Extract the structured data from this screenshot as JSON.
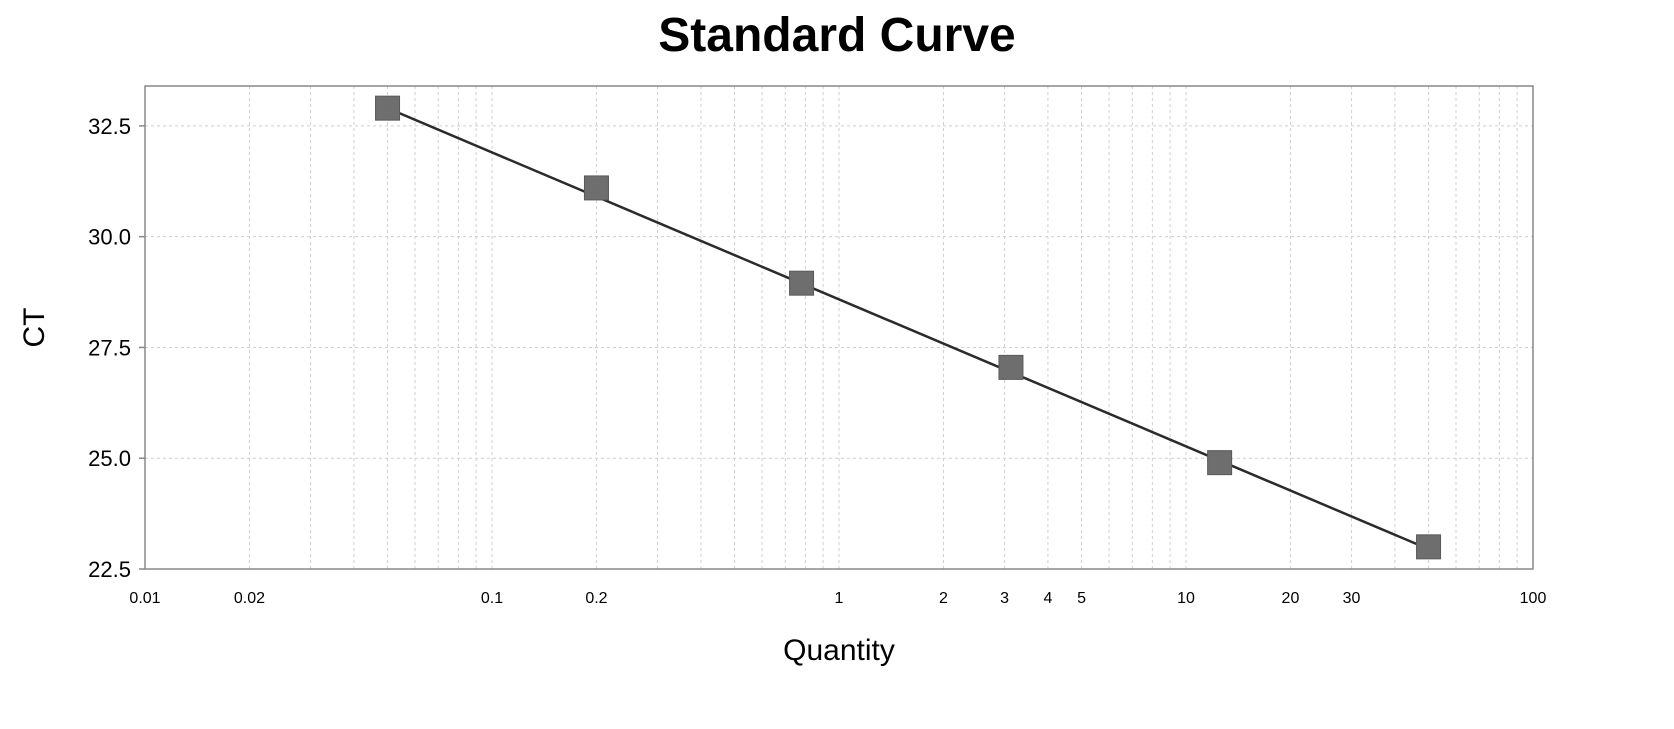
{
  "chart_data": {
    "type": "scatter",
    "title": "Standard Curve",
    "xlabel": "Quantity",
    "ylabel": "CT",
    "xscale": "log",
    "xlim": [
      0.01,
      100
    ],
    "ylim": [
      22.5,
      33.4
    ],
    "grid": true,
    "x_major_ticks": [
      0.01,
      0.1,
      1,
      10,
      100
    ],
    "x_tick_labels": [
      {
        "value": 0.01,
        "label": "0.01"
      },
      {
        "value": 0.02,
        "label": "0.02"
      },
      {
        "value": 0.1,
        "label": "0.1"
      },
      {
        "value": 0.2,
        "label": "0.2"
      },
      {
        "value": 1,
        "label": "1"
      },
      {
        "value": 2,
        "label": "2"
      },
      {
        "value": 3,
        "label": "3"
      },
      {
        "value": 4,
        "label": "4"
      },
      {
        "value": 5,
        "label": "5"
      },
      {
        "value": 10,
        "label": "10"
      },
      {
        "value": 20,
        "label": "20"
      },
      {
        "value": 30,
        "label": "30"
      },
      {
        "value": 100,
        "label": "100"
      }
    ],
    "y_ticks": [
      {
        "value": 22.5,
        "label": "22.5"
      },
      {
        "value": 25.0,
        "label": "25.0"
      },
      {
        "value": 27.5,
        "label": "27.5"
      },
      {
        "value": 30.0,
        "label": "30.0"
      },
      {
        "value": 32.5,
        "label": "32.5"
      }
    ],
    "points": [
      {
        "x": 0.05,
        "y": 32.9
      },
      {
        "x": 0.2,
        "y": 31.1
      },
      {
        "x": 0.78,
        "y": 28.95
      },
      {
        "x": 3.13,
        "y": 27.05
      },
      {
        "x": 12.5,
        "y": 24.9
      },
      {
        "x": 50,
        "y": 23.0
      }
    ],
    "fit_line": {
      "x": [
        0.05,
        50
      ],
      "y": [
        32.9,
        22.95
      ]
    },
    "colors": {
      "marker": "#6e6e6e",
      "line": "#2b2b2b",
      "grid": "#cfcfcf",
      "axis": "#888888"
    }
  }
}
